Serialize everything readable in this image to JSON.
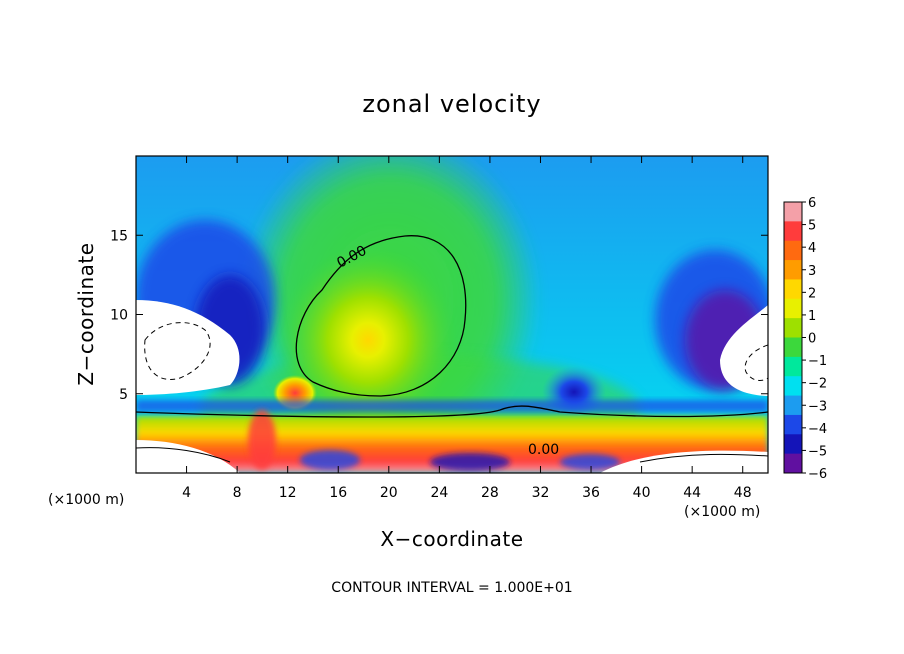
{
  "chart_data": {
    "type": "heatmap",
    "title": "zonal velocity",
    "xlabel": "X−coordinate",
    "ylabel": "Z−coordinate",
    "x_unit_label": "(×1000 m)",
    "x_unit_label_right": "(×1000 m)",
    "xlim": [
      0,
      50
    ],
    "ylim": [
      0,
      20
    ],
    "x_ticks": [
      4,
      8,
      12,
      16,
      20,
      24,
      28,
      32,
      36,
      40,
      44,
      48
    ],
    "x_tick_labels": [
      "4",
      "8",
      "12",
      "16",
      "20",
      "24",
      "28",
      "32",
      "36",
      "40",
      "44",
      "48"
    ],
    "y_ticks": [
      5,
      10,
      15
    ],
    "y_tick_labels": [
      "5",
      "10",
      "15"
    ],
    "colorbar": {
      "ticks": [
        6,
        5,
        4,
        3,
        2,
        1,
        0,
        -1,
        -2,
        -3,
        -4,
        -5,
        -6
      ],
      "labels": [
        "6",
        "5",
        "4",
        "3",
        "2",
        "1",
        "0",
        "−1",
        "−2",
        "−3",
        "−4",
        "−5",
        "−6"
      ],
      "colors": [
        "#f4a0a8",
        "#ff3c3c",
        "#ff6a10",
        "#ff9c00",
        "#ffd800",
        "#e8f000",
        "#9ee000",
        "#3cd83c",
        "#00e89c",
        "#00e0f0",
        "#1c9cf0",
        "#1c48e8",
        "#1414b8",
        "#6010a0"
      ]
    },
    "contour_labels": [
      "0.00",
      "0.00"
    ],
    "contour_interval_text": "CONTOUR INTERVAL = 1.000E+01",
    "field_description": {
      "background_value": -1.5,
      "features": [
        {
          "kind": "max",
          "x": 18.5,
          "z": 8.3,
          "value": 1.2
        },
        {
          "kind": "min",
          "x": 35,
          "z": 5,
          "value": -4.5
        },
        {
          "kind": "min",
          "x": 45.5,
          "z": 9,
          "value": -5.5
        },
        {
          "kind": "min",
          "x": 5,
          "z": 12.5,
          "value": -4.5
        },
        {
          "kind": "max",
          "x": 12.5,
          "z": 5,
          "value": 4.5
        },
        {
          "kind": "low-level-jet",
          "z": 2.5,
          "value": 3.5
        },
        {
          "kind": "max",
          "x": 9.5,
          "z": 1.5,
          "value": 5.5
        }
      ]
    }
  }
}
